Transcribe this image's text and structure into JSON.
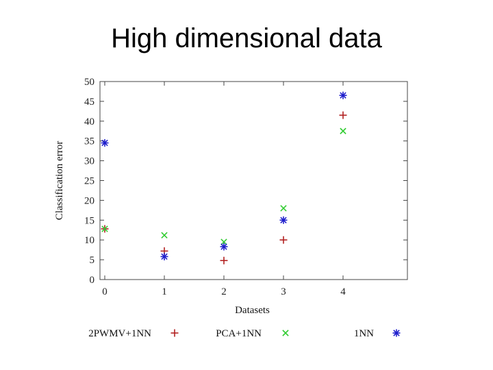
{
  "slide": {
    "title": "High dimensional data"
  },
  "chart_data": {
    "type": "scatter",
    "title": "",
    "xlabel": "Datasets",
    "ylabel": "Classification error",
    "xlim": [
      0,
      5
    ],
    "ylim": [
      0,
      50
    ],
    "xticks": [
      0,
      1,
      2,
      3,
      4
    ],
    "yticks": [
      0,
      5,
      10,
      15,
      20,
      25,
      30,
      35,
      40,
      45,
      50
    ],
    "grid": false,
    "legend_position": "bottom",
    "series": [
      {
        "name": "2PWMV+1NN",
        "marker": "plus",
        "color": "#b22222",
        "x": [
          0,
          1,
          2,
          3,
          4
        ],
        "y": [
          12.8,
          7.2,
          4.8,
          10.0,
          41.5
        ]
      },
      {
        "name": "PCA+1NN",
        "marker": "cross",
        "color": "#33cc33",
        "x": [
          0,
          1,
          2,
          3,
          4
        ],
        "y": [
          12.8,
          11.2,
          9.5,
          18.0,
          37.5
        ]
      },
      {
        "name": "1NN",
        "marker": "star",
        "color": "#1f1fcc",
        "x": [
          0,
          1,
          2,
          3,
          4
        ],
        "y": [
          34.5,
          5.8,
          8.3,
          15.0,
          46.5
        ]
      }
    ]
  }
}
